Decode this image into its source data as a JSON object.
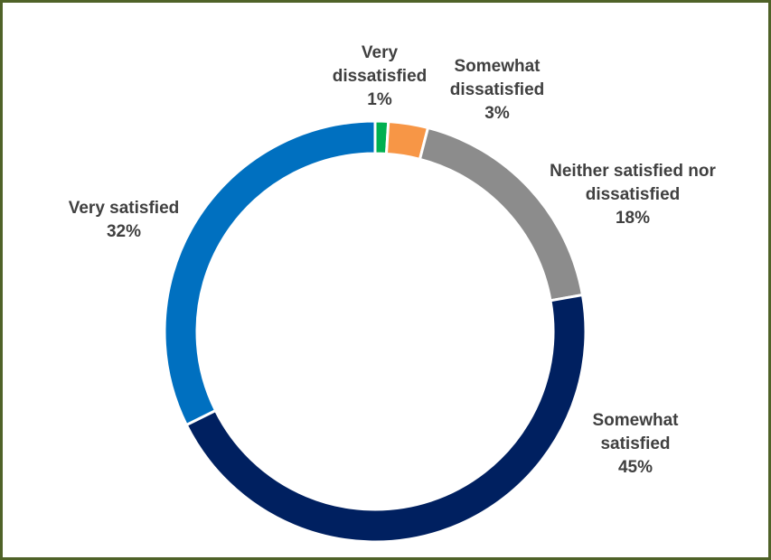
{
  "chart_data": {
    "type": "pie",
    "donut": true,
    "slices": [
      {
        "key": "very_dissatisfied",
        "name_lines": [
          "Very",
          "dissatisfied"
        ],
        "value": 1,
        "pct_label": "1%",
        "color": "#00b050"
      },
      {
        "key": "somewhat_dissatisfied",
        "name_lines": [
          "Somewhat",
          "dissatisfied"
        ],
        "value": 3,
        "pct_label": "3%",
        "color": "#f79646"
      },
      {
        "key": "neither",
        "name_lines": [
          "Neither satisfied nor",
          "dissatisfied"
        ],
        "value": 18,
        "pct_label": "18%",
        "color": "#8c8c8c"
      },
      {
        "key": "somewhat_satisfied",
        "name_lines": [
          "Somewhat",
          "satisfied"
        ],
        "value": 45,
        "pct_label": "45%",
        "color": "#002060"
      },
      {
        "key": "very_satisfied",
        "name_lines": [
          "Very satisfied"
        ],
        "value": 32,
        "pct_label": "32%",
        "color": "#0070c0"
      }
    ],
    "legend": "none",
    "border_color": "#4f6228"
  }
}
